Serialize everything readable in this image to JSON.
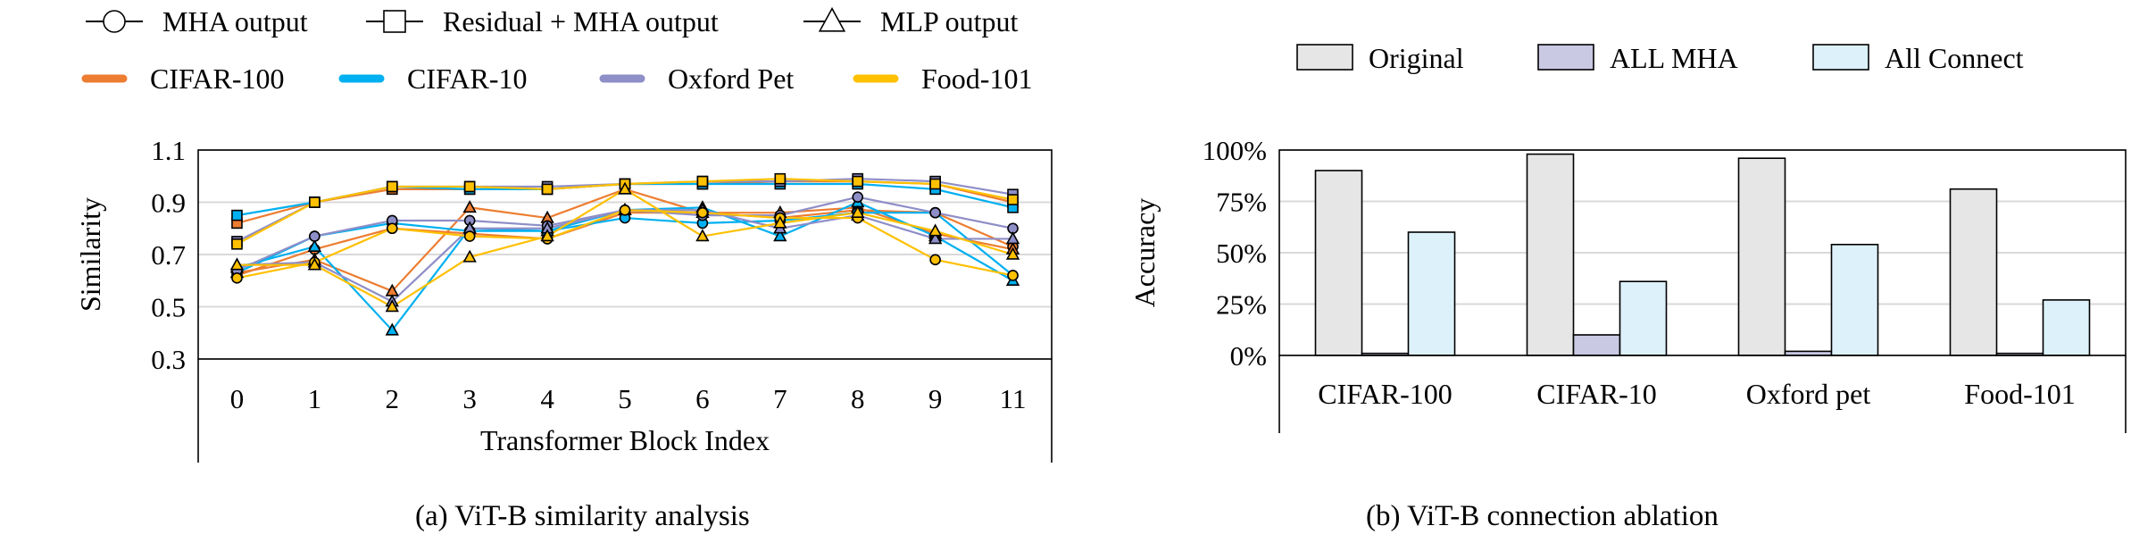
{
  "chart_data": [
    {
      "type": "line",
      "caption": "(a) ViT-B similarity analysis",
      "xlabel": "Transformer Block Index",
      "ylabel": "Similarity",
      "categories": [
        "0",
        "1",
        "2",
        "3",
        "4",
        "5",
        "6",
        "7",
        "8",
        "9",
        "11"
      ],
      "ylim": [
        0.3,
        1.1
      ],
      "yticks": [
        "0.3",
        "0.5",
        "0.7",
        "0.9",
        "1.1"
      ],
      "grid": true,
      "legend_position": "top",
      "marker_legend": [
        {
          "label": "MHA output",
          "marker": "circle"
        },
        {
          "label": "Residual + MHA output",
          "marker": "square"
        },
        {
          "label": "MLP output",
          "marker": "triangle"
        }
      ],
      "color_legend": [
        {
          "label": "CIFAR-100",
          "color": "#ED7D31"
        },
        {
          "label": "CIFAR-10",
          "color": "#00B0F0"
        },
        {
          "label": "Oxford Pet",
          "color": "#8E8EC8"
        },
        {
          "label": "Food-101",
          "color": "#FFC000"
        }
      ],
      "series": [
        {
          "dataset": "CIFAR-100",
          "type": "MHA output",
          "marker": "circle",
          "color": "#ED7D31",
          "values": [
            0.62,
            0.72,
            0.8,
            0.78,
            0.76,
            0.86,
            0.86,
            0.84,
            0.87,
            0.86,
            0.73
          ]
        },
        {
          "dataset": "CIFAR-100",
          "type": "Residual + MHA output",
          "marker": "square",
          "color": "#ED7D31",
          "values": [
            0.82,
            0.9,
            0.95,
            0.95,
            0.95,
            0.97,
            0.97,
            0.98,
            0.98,
            0.97,
            0.9
          ]
        },
        {
          "dataset": "CIFAR-100",
          "type": "MLP output",
          "marker": "triangle",
          "color": "#ED7D31",
          "values": [
            0.63,
            0.68,
            0.56,
            0.88,
            0.84,
            0.95,
            0.86,
            0.86,
            0.88,
            0.78,
            0.72
          ]
        },
        {
          "dataset": "CIFAR-10",
          "type": "MHA output",
          "marker": "circle",
          "color": "#00B0F0",
          "values": [
            0.63,
            0.77,
            0.82,
            0.79,
            0.79,
            0.84,
            0.82,
            0.83,
            0.86,
            0.86,
            0.62
          ]
        },
        {
          "dataset": "CIFAR-10",
          "type": "Residual + MHA output",
          "marker": "square",
          "color": "#00B0F0",
          "values": [
            0.85,
            0.9,
            0.96,
            0.95,
            0.95,
            0.97,
            0.97,
            0.97,
            0.97,
            0.95,
            0.88
          ]
        },
        {
          "dataset": "CIFAR-10",
          "type": "MLP output",
          "marker": "triangle",
          "color": "#00B0F0",
          "values": [
            0.65,
            0.73,
            0.41,
            0.8,
            0.79,
            0.87,
            0.88,
            0.77,
            0.9,
            0.77,
            0.6
          ]
        },
        {
          "dataset": "Oxford Pet",
          "type": "MHA output",
          "marker": "circle",
          "color": "#8E8EC8",
          "values": [
            0.64,
            0.77,
            0.83,
            0.83,
            0.81,
            0.87,
            0.85,
            0.85,
            0.92,
            0.86,
            0.8
          ]
        },
        {
          "dataset": "Oxford Pet",
          "type": "Residual + MHA output",
          "marker": "square",
          "color": "#8E8EC8",
          "values": [
            0.75,
            0.9,
            0.96,
            0.96,
            0.96,
            0.97,
            0.98,
            0.98,
            0.99,
            0.98,
            0.93
          ]
        },
        {
          "dataset": "Oxford Pet",
          "type": "MLP output",
          "marker": "triangle",
          "color": "#8E8EC8",
          "values": [
            0.66,
            0.67,
            0.52,
            0.8,
            0.8,
            0.87,
            0.87,
            0.8,
            0.85,
            0.76,
            0.76
          ]
        },
        {
          "dataset": "Food-101",
          "type": "MHA output",
          "marker": "circle",
          "color": "#FFC000",
          "values": [
            0.61,
            0.67,
            0.8,
            0.77,
            0.76,
            0.87,
            0.86,
            0.84,
            0.84,
            0.68,
            0.62
          ]
        },
        {
          "dataset": "Food-101",
          "type": "Residual + MHA output",
          "marker": "square",
          "color": "#FFC000",
          "values": [
            0.74,
            0.9,
            0.96,
            0.96,
            0.95,
            0.97,
            0.98,
            0.99,
            0.98,
            0.97,
            0.91
          ]
        },
        {
          "dataset": "Food-101",
          "type": "MLP output",
          "marker": "triangle",
          "color": "#FFC000",
          "values": [
            0.66,
            0.66,
            0.5,
            0.69,
            0.77,
            0.95,
            0.77,
            0.82,
            0.86,
            0.79,
            0.7
          ]
        }
      ]
    },
    {
      "type": "bar",
      "caption": "(b) ViT-B connection ablation",
      "ylabel": "Accuracy",
      "categories": [
        "CIFAR-100",
        "CIFAR-10",
        "Oxford pet",
        "Food-101"
      ],
      "ylim": [
        0,
        100
      ],
      "yticks": [
        "0%",
        "25%",
        "50%",
        "75%",
        "100%"
      ],
      "grid": true,
      "legend_position": "top",
      "series": [
        {
          "name": "Original",
          "color": "#E7E6E6",
          "values": [
            90,
            98,
            96,
            81
          ]
        },
        {
          "name": "ALL MHA",
          "color": "#C9C9E3",
          "values": [
            1,
            10,
            2,
            1
          ]
        },
        {
          "name": "All Connect",
          "color": "#DDF1FA",
          "values": [
            60,
            36,
            54,
            27
          ]
        }
      ]
    }
  ]
}
